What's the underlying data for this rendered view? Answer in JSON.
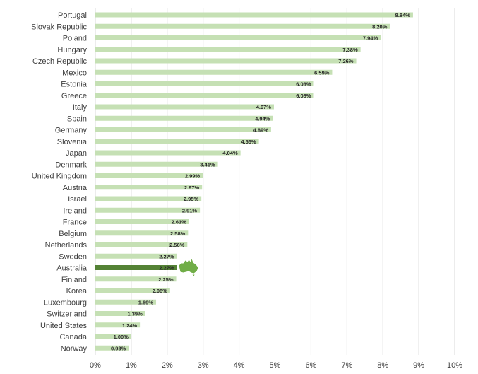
{
  "chart_data": {
    "type": "bar",
    "orientation": "horizontal",
    "categories": [
      "Portugal",
      "Slovak Republic",
      "Poland",
      "Hungary",
      "Czech Republic",
      "Mexico",
      "Estonia",
      "Greece",
      "Italy",
      "Spain",
      "Germany",
      "Slovenia",
      "Japan",
      "Denmark",
      "United Kingdom",
      "Austria",
      "Israel",
      "Ireland",
      "France",
      "Belgium",
      "Netherlands",
      "Sweden",
      "Australia",
      "Finland",
      "Korea",
      "Luxembourg",
      "Switzerland",
      "United States",
      "Canada",
      "Norway"
    ],
    "values": [
      8.84,
      8.2,
      7.94,
      7.38,
      7.26,
      6.59,
      6.08,
      6.08,
      4.97,
      4.94,
      4.89,
      4.55,
      4.04,
      3.41,
      2.99,
      2.97,
      2.95,
      2.91,
      2.61,
      2.58,
      2.56,
      2.27,
      2.27,
      2.25,
      2.08,
      1.69,
      1.39,
      1.24,
      1.0,
      0.93
    ],
    "data_labels": [
      "8.84%",
      "8.20%",
      "7.94%",
      "7.38%",
      "7.26%",
      "6.59%",
      "6.08%",
      "6.08%",
      "4.97%",
      "4.94%",
      "4.89%",
      "4.55%",
      "4.04%",
      "3.41%",
      "2.99%",
      "2.97%",
      "2.95%",
      "2.91%",
      "2.61%",
      "2.58%",
      "2.56%",
      "2.27%",
      "2.27%",
      "2.25%",
      "2.08%",
      "1.69%",
      "1.39%",
      "1.24%",
      "1.00%",
      "0.93%"
    ],
    "highlight_category": "Australia",
    "xlim": [
      0,
      10
    ],
    "x_ticks": [
      0,
      1,
      2,
      3,
      4,
      5,
      6,
      7,
      8,
      9,
      10
    ],
    "x_tick_labels": [
      "0%",
      "1%",
      "2%",
      "3%",
      "4%",
      "5%",
      "6%",
      "7%",
      "8%",
      "9%",
      "10%"
    ],
    "grid": "vertical",
    "legend": "none",
    "annotation_icon": "australia-map-icon",
    "colors": {
      "bar": "#c5e0b4",
      "highlight_bar": "#548235",
      "icon": "#70ad47",
      "grid": "#d9d9d9",
      "text": "#404040",
      "data_label": "#262626"
    }
  }
}
